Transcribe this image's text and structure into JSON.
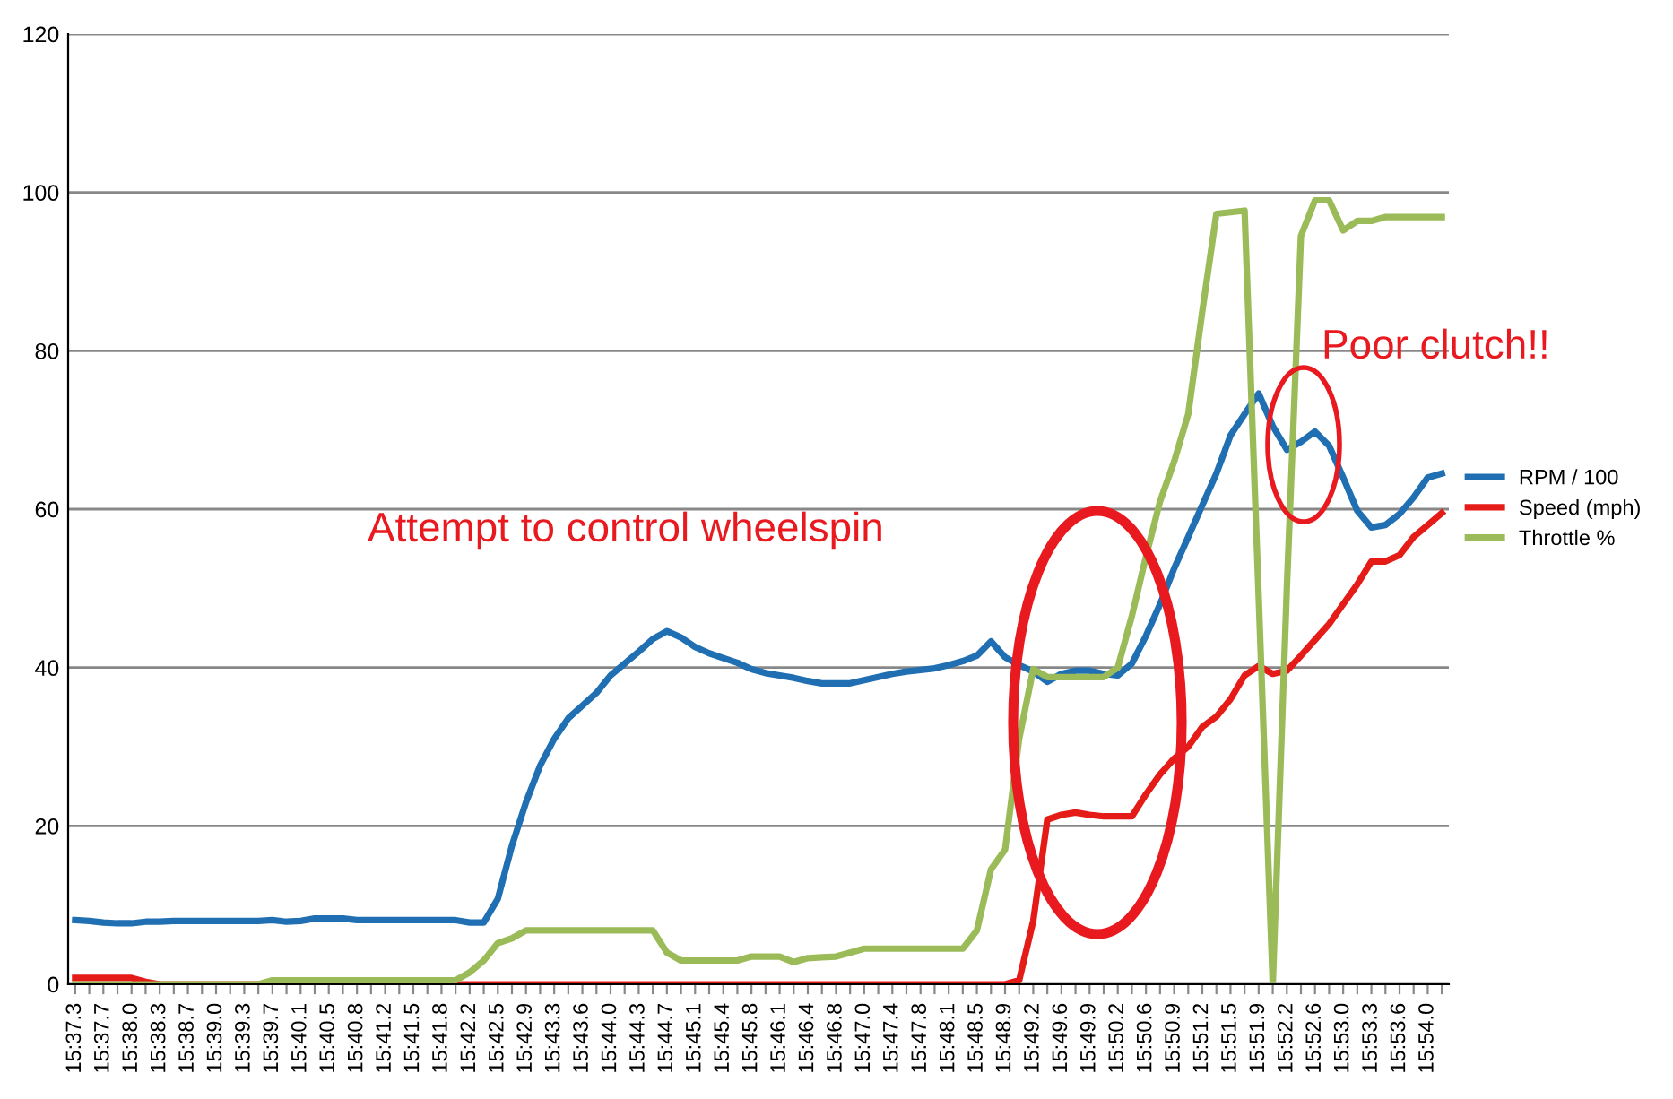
{
  "chart_data": {
    "type": "line",
    "categories": [
      "15:37.3",
      null,
      "15:37.7",
      null,
      "15:38.0",
      null,
      "15:38.3",
      null,
      "15:38.7",
      null,
      "15:39.0",
      null,
      "15:39.3",
      null,
      "15:39.7",
      null,
      "15:40.1",
      null,
      "15:40.5",
      null,
      "15:40.8",
      null,
      "15:41.2",
      null,
      "15:41.5",
      null,
      "15:41.8",
      null,
      "15:42.2",
      null,
      "15:42.5",
      null,
      "15:42.9",
      null,
      "15:43.3",
      null,
      "15:43.6",
      null,
      "15:44.0",
      null,
      "15:44.3",
      null,
      "15:44.7",
      null,
      "15:45.1",
      null,
      "15:45.4",
      null,
      "15:45.8",
      null,
      "15:46.1",
      null,
      "15:46.4",
      null,
      "15:46.8",
      null,
      "15:47.0",
      null,
      "15:47.4",
      null,
      "15:47.8",
      null,
      "15:48.1",
      null,
      "15:48.5",
      null,
      "15:48.9",
      null,
      "15:49.2",
      null,
      "15:49.6",
      null,
      "15:49.9",
      null,
      "15:50.2",
      null,
      "15:50.6",
      null,
      "15:50.9",
      null,
      "15:51.2",
      null,
      "15:51.5",
      null,
      "15:51.9",
      null,
      "15:52.2",
      null,
      "15:52.6",
      null,
      "15:53.0",
      null,
      "15:53.3",
      null,
      "15:53.6",
      null,
      "15:54.0",
      null
    ],
    "series": [
      {
        "name": "RPM / 100",
        "color": "#1f6fb2",
        "values": [
          8.1,
          8.0,
          7.8,
          7.7,
          7.7,
          7.9,
          7.9,
          8.0,
          8.0,
          8.0,
          8.0,
          8.0,
          8.0,
          8.0,
          8.1,
          7.9,
          8.0,
          8.3,
          8.3,
          8.3,
          8.1,
          8.1,
          8.1,
          8.1,
          8.1,
          8.1,
          8.1,
          8.1,
          7.8,
          7.8,
          10.8,
          17.5,
          23,
          27.6,
          31,
          33.6,
          35.2,
          36.8,
          39,
          40.5,
          42,
          43.6,
          44.6,
          43.8,
          42.6,
          41.8,
          41.2,
          40.6,
          39.8,
          39.3,
          39,
          38.7,
          38.3,
          38,
          38,
          38,
          38.4,
          38.8,
          39.2,
          39.5,
          39.7,
          39.9,
          40.3,
          40.8,
          41.5,
          43.3,
          41.3,
          40.3,
          39.5,
          38.2,
          39.2,
          39.6,
          39.6,
          39.2,
          39.0,
          40.5,
          44,
          48,
          52.5,
          56.5,
          60.5,
          64.5,
          69.3,
          72,
          74.6,
          70.5,
          67.5,
          68.5,
          69.8,
          68,
          64,
          59.8,
          57.7,
          58,
          59.4,
          61.5,
          64,
          64.5
        ]
      },
      {
        "name": "Speed (mph)",
        "color": "#e41b17",
        "values": [
          0.8,
          0.8,
          0.8,
          0.8,
          0.8,
          0.3,
          0,
          0,
          0,
          0,
          0,
          0,
          0,
          0,
          0,
          0,
          0,
          0,
          0,
          0,
          0,
          0,
          0,
          0,
          0,
          0,
          0,
          0,
          0,
          0,
          0,
          0,
          0,
          0,
          0,
          0,
          0,
          0,
          0,
          0,
          0,
          0,
          0,
          0,
          0,
          0,
          0,
          0,
          0,
          0,
          0,
          0,
          0,
          0,
          0,
          0,
          0,
          0,
          0,
          0,
          0,
          0,
          0,
          0,
          0,
          0,
          0,
          0.5,
          8,
          20.8,
          21.4,
          21.7,
          21.4,
          21.2,
          21.2,
          21.2,
          24,
          26.5,
          28.5,
          30,
          32.5,
          33.8,
          36,
          39,
          40.2,
          39.2,
          39.6,
          41.5,
          43.5,
          45.5,
          48,
          50.5,
          53.4,
          53.4,
          54.2,
          56.5,
          58,
          59.5
        ]
      },
      {
        "name": "Throttle %",
        "color": "#9bbb59",
        "values": [
          0,
          0,
          0,
          0,
          0,
          0,
          0,
          0,
          0,
          0,
          0,
          0,
          0,
          0,
          0.5,
          0.5,
          0.5,
          0.5,
          0.5,
          0.5,
          0.5,
          0.5,
          0.5,
          0.5,
          0.5,
          0.5,
          0.5,
          0.5,
          1.5,
          3,
          5.2,
          5.8,
          6.8,
          6.8,
          6.8,
          6.8,
          6.8,
          6.8,
          6.8,
          6.8,
          6.8,
          6.8,
          4,
          3,
          3,
          3,
          3,
          3,
          3.5,
          3.5,
          3.5,
          2.8,
          3.3,
          3.4,
          3.5,
          4,
          4.5,
          4.5,
          4.5,
          4.5,
          4.5,
          4.5,
          4.5,
          4.5,
          6.8,
          14.5,
          17,
          31,
          39.8,
          38.8,
          38.8,
          38.8,
          38.8,
          38.8,
          40,
          46.5,
          54,
          61,
          66,
          72,
          85,
          97.3,
          97.5,
          97.7,
          49,
          0,
          50,
          94.5,
          99,
          99,
          95.2,
          96.4,
          96.4,
          96.9,
          96.9,
          96.9,
          96.9,
          96.9
        ]
      }
    ],
    "ylim": [
      0,
      120
    ],
    "yticks": [
      0,
      20,
      40,
      60,
      80,
      100,
      120
    ],
    "grid": "y",
    "legend": "right",
    "annotations": [
      "Attempt to control wheelspin",
      "Poor clutch!!"
    ]
  }
}
